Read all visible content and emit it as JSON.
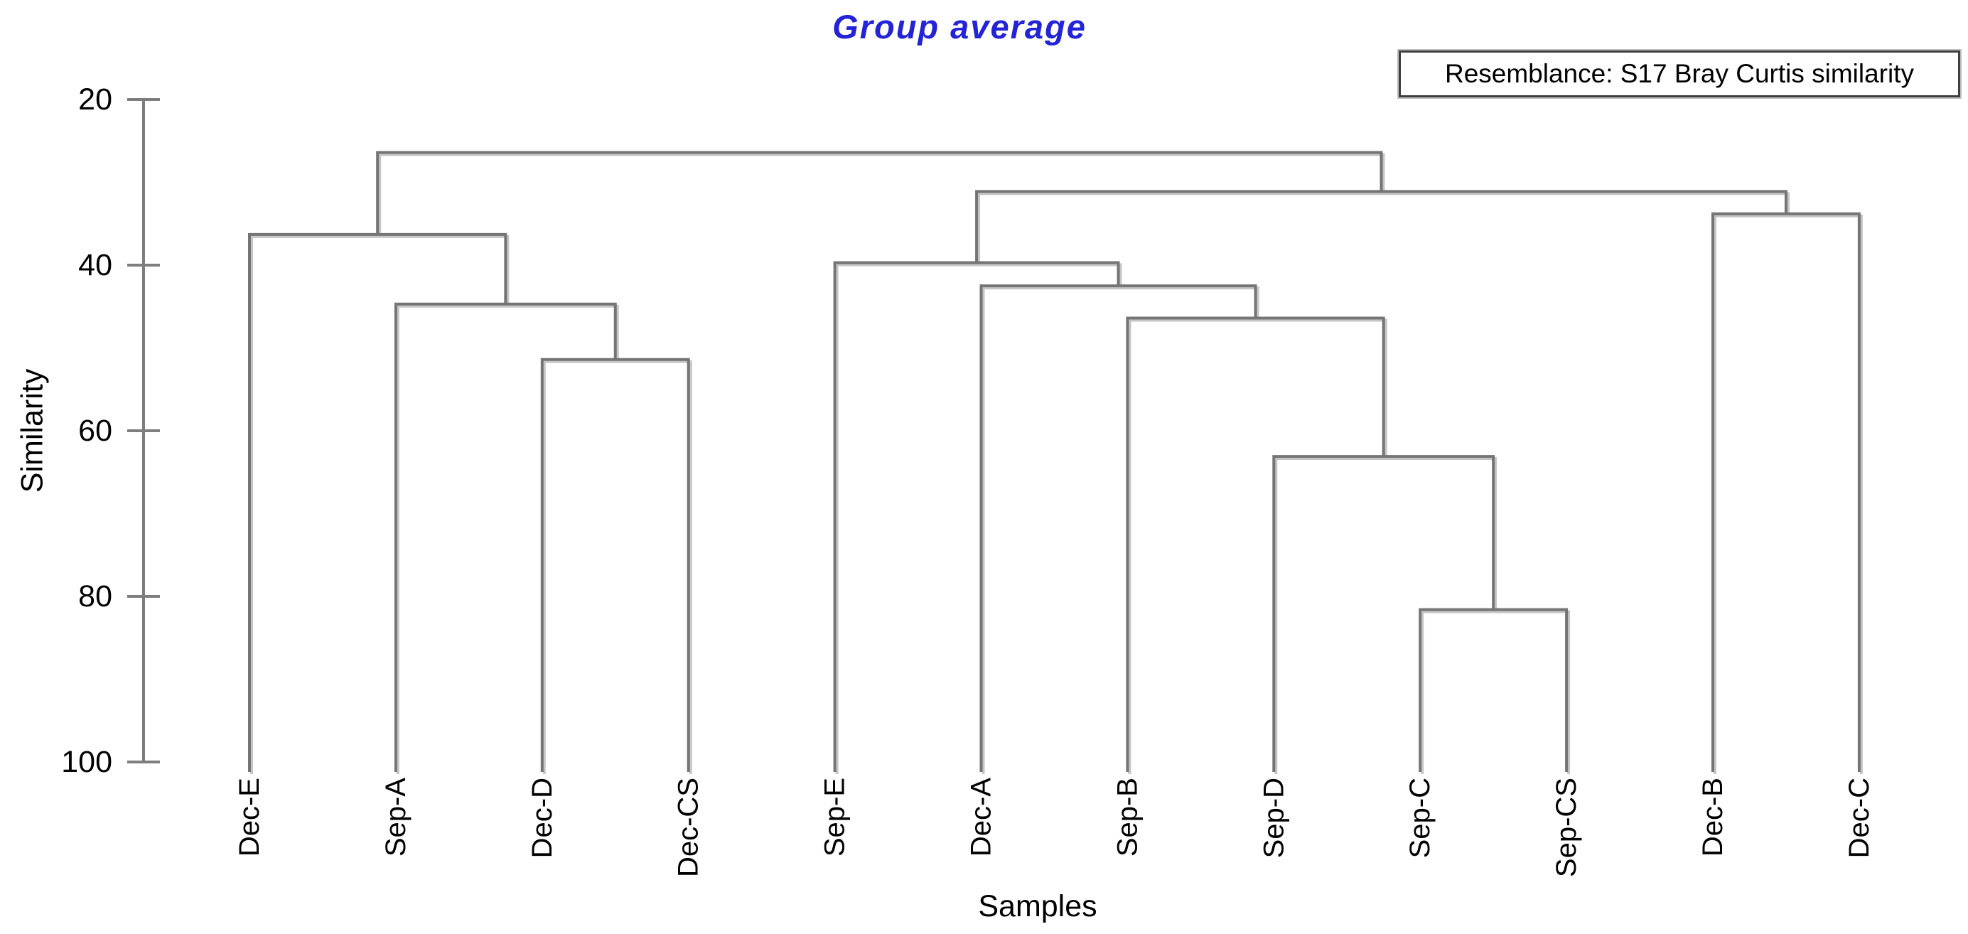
{
  "chart_data": {
    "type": "dendrogram",
    "orientation": "top-down",
    "title": "Group average",
    "annotation": "Resemblance: S17 Bray Curtis similarity",
    "xlabel": "Samples",
    "ylabel": "Similarity",
    "y_axis": {
      "label": "Similarity",
      "min": 20,
      "max": 100,
      "ticks": [
        20,
        40,
        60,
        80,
        100
      ],
      "direction": "values increase downward",
      "grid": false
    },
    "leaves": [
      "Dec-E",
      "Sep-A",
      "Dec-D",
      "Dec-CS",
      "Sep-E",
      "Dec-A",
      "Sep-B",
      "Sep-D",
      "Sep-C",
      "Sep-CS",
      "Dec-B",
      "Dec-C"
    ],
    "merges": [
      {
        "id": "M1",
        "children": [
          "Dec-D",
          "Dec-CS"
        ],
        "similarity": 51.4
      },
      {
        "id": "M2",
        "children": [
          "Sep-A",
          "M1"
        ],
        "similarity": 44.7
      },
      {
        "id": "M3",
        "children": [
          "Dec-E",
          "M2"
        ],
        "similarity": 36.3
      },
      {
        "id": "M4",
        "children": [
          "Sep-C",
          "Sep-CS"
        ],
        "similarity": 81.6
      },
      {
        "id": "M5",
        "children": [
          "Sep-D",
          "M4"
        ],
        "similarity": 63.1
      },
      {
        "id": "M6",
        "children": [
          "Sep-B",
          "M5"
        ],
        "similarity": 46.4
      },
      {
        "id": "M7",
        "children": [
          "Dec-A",
          "M6"
        ],
        "similarity": 42.5
      },
      {
        "id": "M8",
        "children": [
          "Sep-E",
          "M7"
        ],
        "similarity": 39.7
      },
      {
        "id": "M9",
        "children": [
          "Dec-B",
          "Dec-C"
        ],
        "similarity": 33.8
      },
      {
        "id": "M10",
        "children": [
          "M8",
          "M9"
        ],
        "similarity": 31.1
      },
      {
        "id": "M11",
        "children": [
          "M3",
          "M10"
        ],
        "similarity": 26.4
      }
    ],
    "colors": {
      "line": "#757575",
      "line_shadow": "#c6c6c6",
      "axis": "#7e7e7e",
      "title": "#2323d7",
      "text": "#000000",
      "background": "#ffffff",
      "annotation_border": "#3f3f3f"
    }
  }
}
